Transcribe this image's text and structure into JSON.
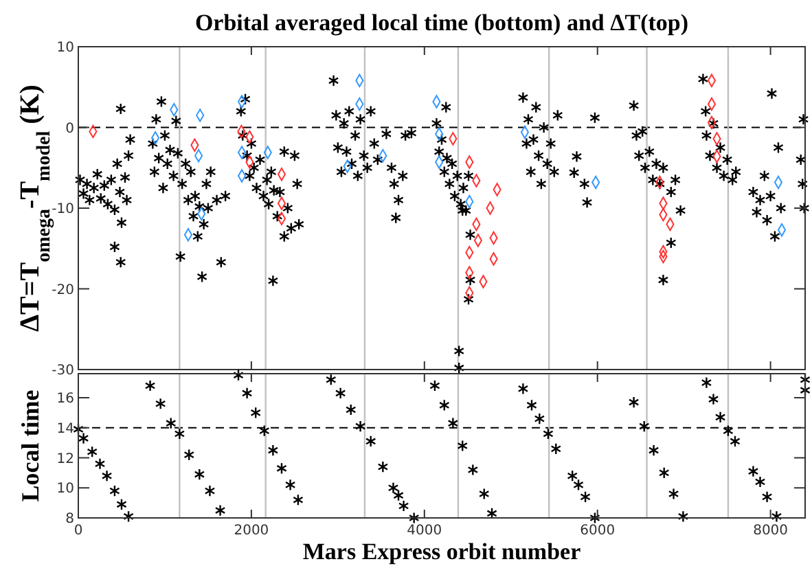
{
  "chart_data": [
    {
      "type": "scatter",
      "title": "Orbital averaged local time (bottom) and ΔT(top)",
      "ylabel": "ΔT=T$_{omega}$-T$_{model}$ (K)",
      "xlim": [
        0,
        8400
      ],
      "xticks": [
        0,
        2000,
        4000,
        6000,
        8000
      ],
      "ylim": [
        -30,
        10
      ],
      "yticks": [
        -30,
        -20,
        -10,
        0,
        10
      ],
      "tick_labels": "y",
      "grid": false,
      "ref_lines": [
        {
          "axis": "y",
          "value": 0,
          "color": "#000000",
          "line_style": "dashed"
        },
        {
          "axis": "x",
          "value": 1170,
          "color": "#c0c0c0"
        },
        {
          "axis": "x",
          "value": 2165,
          "color": "#c0c0c0"
        },
        {
          "axis": "x",
          "value": 3310,
          "color": "#c0c0c0"
        },
        {
          "axis": "x",
          "value": 4390,
          "color": "#c0c0c0"
        },
        {
          "axis": "x",
          "value": 5440,
          "color": "#c0c0c0"
        },
        {
          "axis": "x",
          "value": 6570,
          "color": "#c0c0c0"
        },
        {
          "axis": "x",
          "value": 7510,
          "color": "#c0c0c0"
        }
      ],
      "series": [
        {
          "color": "#000000",
          "marker": "cross",
          "x": [
            20,
            60,
            100,
            130,
            180,
            220,
            260,
            300,
            340,
            380,
            420,
            450,
            480,
            490,
            500,
            540,
            560,
            580,
            420,
            490,
            600,
            860,
            880,
            900,
            930,
            960,
            980,
            1000,
            1030,
            1060,
            1100,
            1130,
            1150,
            1180,
            1200,
            1240,
            1270,
            1300,
            1330,
            1350,
            1380,
            1400,
            1430,
            1450,
            1480,
            1500,
            1530,
            1600,
            1650,
            1700,
            1880,
            1900,
            1930,
            1950,
            1980,
            2000,
            2030,
            2060,
            2100,
            2140,
            2180,
            2200,
            2230,
            2260,
            2300,
            2330,
            2380,
            2420,
            2460,
            2500,
            2530,
            2550,
            2250,
            2380,
            2950,
            2980,
            3000,
            3040,
            3070,
            3100,
            3130,
            3160,
            3200,
            3230,
            3260,
            3300,
            3340,
            3380,
            3420,
            3460,
            3560,
            3620,
            3650,
            3670,
            3700,
            3750,
            3780,
            3850,
            4140,
            4170,
            4200,
            4230,
            4260,
            4290,
            4320,
            4350,
            4380,
            4420,
            4450,
            4480,
            4510,
            4400,
            4400,
            4530,
            4530,
            4510,
            4440,
            4250,
            5140,
            5180,
            5200,
            5230,
            5260,
            5290,
            5320,
            5350,
            5380,
            5420,
            5460,
            5500,
            5540,
            5760,
            5730,
            5850,
            5880,
            5970,
            6420,
            6450,
            6480,
            6520,
            6550,
            6600,
            6640,
            6680,
            6720,
            6760,
            6850,
            6960,
            6850,
            6760,
            6900,
            7220,
            7250,
            7260,
            7300,
            7340,
            7380,
            7420,
            7460,
            7500,
            7560,
            7600,
            7800,
            7840,
            7880,
            7930,
            7960,
            8000,
            8050,
            8015,
            8090,
            8120,
            8350,
            8370,
            8390,
            8380
          ],
          "values": [
            -6.5,
            -8.2,
            -7.0,
            -9.0,
            -7.5,
            -5.8,
            -8.8,
            -7.2,
            -9.5,
            -6.5,
            -10.2,
            -4.5,
            -8.0,
            2.3,
            -11.8,
            -6.2,
            -9.0,
            -3.5,
            -14.8,
            -16.7,
            -1.5,
            -2.0,
            -5.5,
            1.0,
            -3.8,
            3.2,
            -7.5,
            -1.0,
            -4.5,
            -2.8,
            -6.0,
            0.8,
            -3.2,
            -16.0,
            -7.0,
            -4.5,
            -9.0,
            -5.5,
            -11.0,
            -8.5,
            -13.5,
            -9.8,
            -18.5,
            -12.0,
            -7.0,
            -10.0,
            -5.5,
            -9.0,
            -16.7,
            -8.5,
            2.0,
            -1.0,
            3.5,
            -3.5,
            -6.0,
            -2.0,
            -5.0,
            -7.5,
            -4.0,
            -8.5,
            -6.5,
            -9.5,
            -5.5,
            -7.8,
            -11.0,
            -8.0,
            -13.5,
            -10.0,
            -12.5,
            -3.5,
            -7.0,
            -12.0,
            -19.0,
            -3.0,
            5.8,
            1.5,
            -2.5,
            -5.5,
            0.5,
            -3.0,
            2.0,
            -4.5,
            -1.0,
            -6.0,
            1.0,
            -3.5,
            -5.0,
            2.0,
            -2.0,
            -4.0,
            -0.8,
            -5.0,
            -7.0,
            -11.2,
            -9.0,
            -6.0,
            -1.0,
            -0.7,
            0.5,
            -3.0,
            -1.5,
            -5.5,
            -3.8,
            -7.0,
            -4.5,
            -8.5,
            -6.0,
            -9.5,
            -7.5,
            -10.3,
            -6.0,
            -27.7,
            -29.8,
            -13.3,
            -18.9,
            -21.3,
            -10.3,
            2.5,
            3.7,
            -2.0,
            1.0,
            -5.5,
            -1.5,
            2.5,
            -3.5,
            -7.0,
            0.0,
            -4.5,
            -2.0,
            -5.5,
            1.5,
            -3.6,
            -5.6,
            -7.0,
            -9.3,
            1.2,
            2.7,
            -1.0,
            -3.5,
            -0.5,
            -5.0,
            -3.0,
            -6.5,
            -4.5,
            -7.0,
            -5.0,
            -8.0,
            -10.3,
            -14.3,
            -18.9,
            -6.5,
            6.0,
            2.0,
            -1.0,
            -3.5,
            0.5,
            -5.0,
            -2.5,
            -6.0,
            -4.0,
            -6.5,
            -5.5,
            -8.0,
            -10.5,
            -9.0,
            -6.0,
            -11.5,
            -8.5,
            -13.5,
            4.2,
            -2.5,
            -10.0,
            -4.0,
            -7.0,
            -10.0,
            1.0
          ]
        },
        {
          "color": "#3399ff",
          "marker": "diamond",
          "x": [
            890,
            1106,
            1270,
            1390,
            1407,
            1423,
            1890,
            1890,
            1890,
            2190,
            3110,
            3250,
            3250,
            3520,
            4140,
            4170,
            4170,
            4520,
            5160,
            5980,
            8090,
            8130
          ],
          "values": [
            -1.3,
            2.2,
            -13.3,
            -3.5,
            1.5,
            -10.7,
            3.2,
            -3.1,
            -6.0,
            -3.1,
            -4.8,
            5.8,
            2.9,
            -3.5,
            3.2,
            -0.8,
            -4.3,
            -9.2,
            -0.6,
            -6.8,
            -6.8,
            -12.7
          ]
        },
        {
          "color": "#ff3333",
          "marker": "diamond",
          "x": [
            170,
            1345,
            1885,
            1980,
            1980,
            2350,
            2350,
            2350,
            4330,
            4520,
            4600,
            4600,
            4520,
            4520,
            4520,
            4680,
            4760,
            4840,
            4800,
            4800,
            4620,
            6760,
            6760,
            6840,
            6760,
            6760,
            6720,
            7320,
            7320,
            7320,
            7380,
            7380
          ],
          "values": [
            -0.5,
            -2.2,
            -0.5,
            -1.2,
            -4.3,
            -5.8,
            -9.4,
            -11.3,
            -1.4,
            -4.3,
            -6.6,
            -12.0,
            -15.5,
            -18.0,
            -20.5,
            -19.1,
            -10.0,
            -7.7,
            -13.7,
            -16.3,
            -14.0,
            -9.4,
            -10.8,
            -12.0,
            -15.4,
            -16.0,
            -6.8,
            5.8,
            2.9,
            0.6,
            -1.4,
            -3.6
          ]
        }
      ]
    },
    {
      "type": "scatter",
      "xlabel": "Mars Express orbit number",
      "ylabel": "Local time",
      "xlim": [
        0,
        8400
      ],
      "xticks": [
        0,
        2000,
        4000,
        6000,
        8000
      ],
      "ylim": [
        8,
        17.6
      ],
      "yticks": [
        8,
        10,
        12,
        14,
        16
      ],
      "grid": false,
      "ref_lines": [
        {
          "axis": "y",
          "value": 14,
          "color": "#000000",
          "line_style": "dashed"
        },
        {
          "axis": "x",
          "value": 1170,
          "color": "#c0c0c0"
        },
        {
          "axis": "x",
          "value": 2165,
          "color": "#c0c0c0"
        },
        {
          "axis": "x",
          "value": 3310,
          "color": "#c0c0c0"
        },
        {
          "axis": "x",
          "value": 4390,
          "color": "#c0c0c0"
        },
        {
          "axis": "x",
          "value": 5440,
          "color": "#c0c0c0"
        },
        {
          "axis": "x",
          "value": 6570,
          "color": "#c0c0c0"
        },
        {
          "axis": "x",
          "value": 7510,
          "color": "#c0c0c0"
        }
      ],
      "series": [
        {
          "color": "#000000",
          "marker": "cross",
          "x": [
            0,
            60,
            160,
            250,
            330,
            420,
            500,
            580,
            830,
            950,
            1070,
            1170,
            1280,
            1400,
            1520,
            1640,
            1850,
            1950,
            2050,
            2150,
            2250,
            2350,
            2450,
            2540,
            2920,
            3030,
            3150,
            3260,
            3380,
            3520,
            3640,
            3700,
            3760,
            3880,
            4120,
            4230,
            4330,
            4440,
            4560,
            4690,
            4780,
            5140,
            5240,
            5330,
            5430,
            5520,
            5710,
            5780,
            5860,
            5970,
            6420,
            6540,
            6650,
            6770,
            6880,
            6990,
            7260,
            7340,
            7420,
            7510,
            7590,
            7800,
            7880,
            7960,
            8070,
            8400,
            8400
          ],
          "values": [
            13.9,
            13.3,
            12.4,
            11.6,
            10.8,
            9.8,
            8.9,
            8.1,
            16.8,
            15.6,
            14.3,
            13.6,
            12.2,
            10.9,
            9.8,
            8.5,
            17.5,
            16.3,
            15.0,
            13.8,
            12.5,
            11.3,
            10.2,
            9.2,
            17.2,
            16.3,
            15.2,
            14.1,
            13.1,
            11.4,
            10.0,
            9.5,
            8.8,
            8.0,
            16.8,
            15.5,
            14.3,
            12.8,
            11.2,
            9.6,
            8.3,
            16.6,
            15.5,
            14.6,
            13.6,
            12.6,
            10.8,
            10.2,
            9.4,
            8.0,
            15.7,
            14.1,
            12.5,
            11.0,
            9.6,
            8.1,
            17.0,
            15.9,
            14.7,
            13.8,
            13.1,
            11.1,
            10.4,
            9.4,
            8.1,
            17.2,
            16.5
          ]
        }
      ]
    }
  ]
}
